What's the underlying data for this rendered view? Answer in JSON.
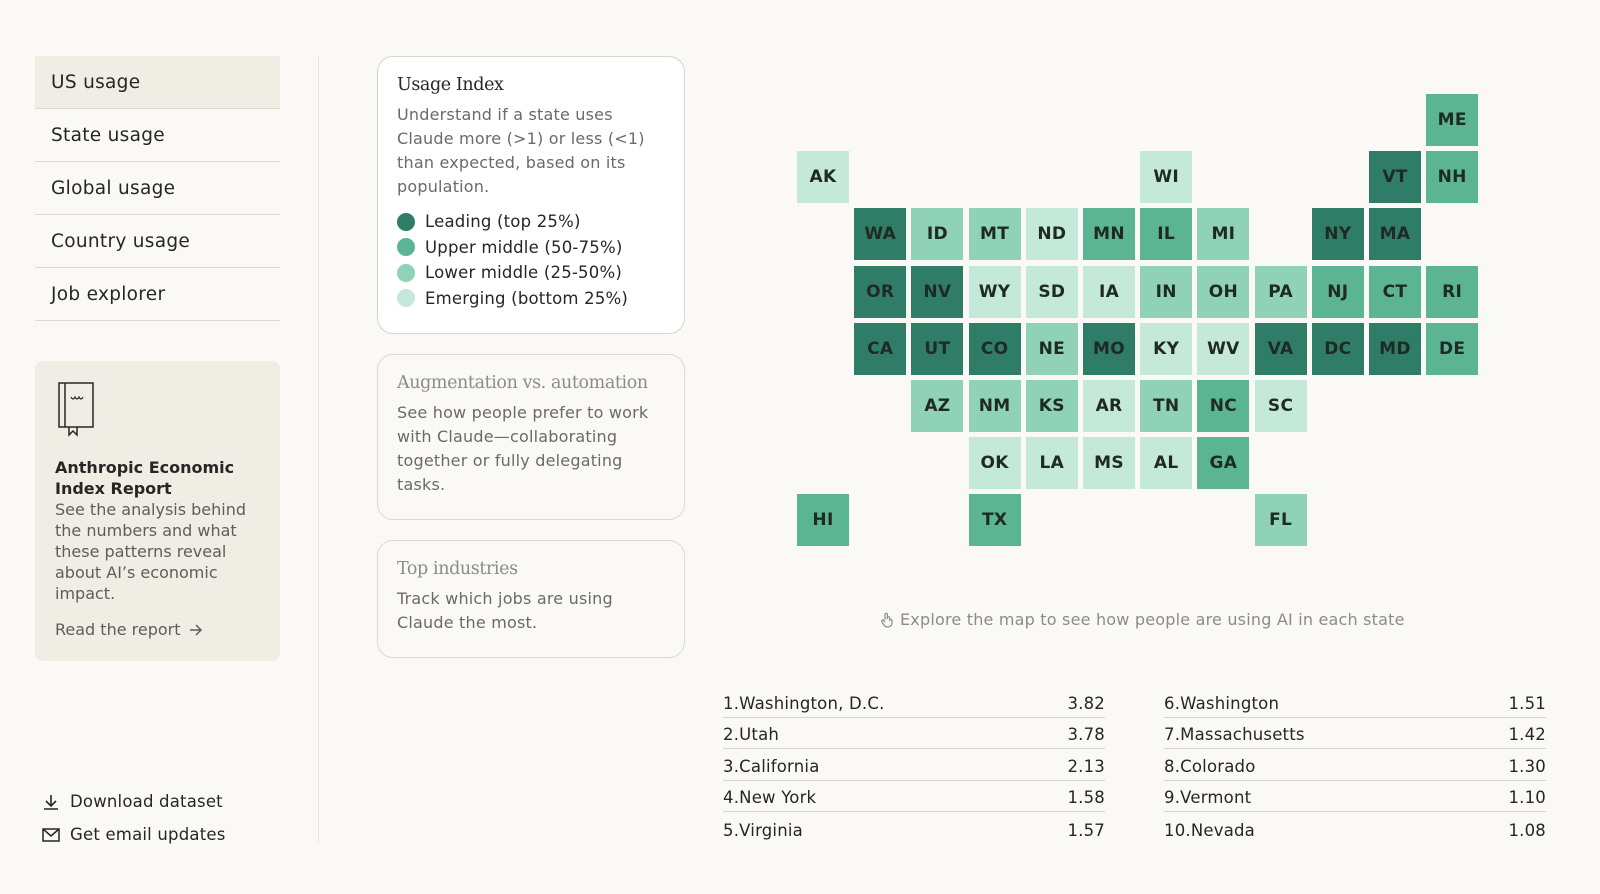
{
  "nav": {
    "items": [
      {
        "label": "US usage",
        "active": true
      },
      {
        "label": "State usage",
        "active": false
      },
      {
        "label": "Global usage",
        "active": false
      },
      {
        "label": "Country usage",
        "active": false
      },
      {
        "label": "Job explorer",
        "active": false
      }
    ]
  },
  "report": {
    "title": "Anthropic Economic Index Report",
    "description": "See the analysis behind the numbers and what these patterns reveal about AI’s economic impact.",
    "link_label": "Read the report",
    "icon": "book-icon"
  },
  "bottom_links": {
    "download": "Download dataset",
    "email": "Get email updates"
  },
  "cards": {
    "usage_index": {
      "title": "Usage Index",
      "description": "Understand if a state uses Claude more (>1) or less (<1) than expected, based on its population.",
      "legend": [
        {
          "label": "Leading (top 25%)",
          "color": "#2f7d66"
        },
        {
          "label": "Upper middle (50-75%)",
          "color": "#5bb595"
        },
        {
          "label": "Lower middle (25-50%)",
          "color": "#8fd2b8"
        },
        {
          "label": "Emerging (bottom 25%)",
          "color": "#c4e8d9"
        }
      ]
    },
    "augmentation": {
      "title": "Augmentation vs. automation",
      "description": "See how people prefer to work with Claude—collaborating together or fully delegating tasks."
    },
    "industries": {
      "title": "Top industries",
      "description": "Track which jobs are using Claude the most."
    }
  },
  "map": {
    "colors": {
      "t1": "#2f7d66",
      "t2": "#5bb595",
      "t3": "#8fd2b8",
      "t4": "#c4e8d9"
    },
    "states": [
      {
        "code": "ME",
        "col": 11,
        "row": 0,
        "tier": 2
      },
      {
        "code": "AK",
        "col": 0,
        "row": 1,
        "tier": 4
      },
      {
        "code": "WI",
        "col": 6,
        "row": 1,
        "tier": 4
      },
      {
        "code": "VT",
        "col": 10,
        "row": 1,
        "tier": 1
      },
      {
        "code": "NH",
        "col": 11,
        "row": 1,
        "tier": 2
      },
      {
        "code": "WA",
        "col": 1,
        "row": 2,
        "tier": 1
      },
      {
        "code": "ID",
        "col": 2,
        "row": 2,
        "tier": 3
      },
      {
        "code": "MT",
        "col": 3,
        "row": 2,
        "tier": 3
      },
      {
        "code": "ND",
        "col": 4,
        "row": 2,
        "tier": 4
      },
      {
        "code": "MN",
        "col": 5,
        "row": 2,
        "tier": 2
      },
      {
        "code": "IL",
        "col": 6,
        "row": 2,
        "tier": 2
      },
      {
        "code": "MI",
        "col": 7,
        "row": 2,
        "tier": 3
      },
      {
        "code": "NY",
        "col": 9,
        "row": 2,
        "tier": 1
      },
      {
        "code": "MA",
        "col": 10,
        "row": 2,
        "tier": 1
      },
      {
        "code": "OR",
        "col": 1,
        "row": 3,
        "tier": 1
      },
      {
        "code": "NV",
        "col": 2,
        "row": 3,
        "tier": 1
      },
      {
        "code": "WY",
        "col": 3,
        "row": 3,
        "tier": 4
      },
      {
        "code": "SD",
        "col": 4,
        "row": 3,
        "tier": 4
      },
      {
        "code": "IA",
        "col": 5,
        "row": 3,
        "tier": 4
      },
      {
        "code": "IN",
        "col": 6,
        "row": 3,
        "tier": 3
      },
      {
        "code": "OH",
        "col": 7,
        "row": 3,
        "tier": 3
      },
      {
        "code": "PA",
        "col": 8,
        "row": 3,
        "tier": 3
      },
      {
        "code": "NJ",
        "col": 9,
        "row": 3,
        "tier": 2
      },
      {
        "code": "CT",
        "col": 10,
        "row": 3,
        "tier": 2
      },
      {
        "code": "RI",
        "col": 11,
        "row": 3,
        "tier": 2
      },
      {
        "code": "CA",
        "col": 1,
        "row": 4,
        "tier": 1
      },
      {
        "code": "UT",
        "col": 2,
        "row": 4,
        "tier": 1
      },
      {
        "code": "CO",
        "col": 3,
        "row": 4,
        "tier": 1
      },
      {
        "code": "NE",
        "col": 4,
        "row": 4,
        "tier": 3
      },
      {
        "code": "MO",
        "col": 5,
        "row": 4,
        "tier": 1
      },
      {
        "code": "KY",
        "col": 6,
        "row": 4,
        "tier": 4
      },
      {
        "code": "WV",
        "col": 7,
        "row": 4,
        "tier": 4
      },
      {
        "code": "VA",
        "col": 8,
        "row": 4,
        "tier": 1
      },
      {
        "code": "DC",
        "col": 9,
        "row": 4,
        "tier": 1
      },
      {
        "code": "MD",
        "col": 10,
        "row": 4,
        "tier": 1
      },
      {
        "code": "DE",
        "col": 11,
        "row": 4,
        "tier": 2
      },
      {
        "code": "AZ",
        "col": 2,
        "row": 5,
        "tier": 3
      },
      {
        "code": "NM",
        "col": 3,
        "row": 5,
        "tier": 3
      },
      {
        "code": "KS",
        "col": 4,
        "row": 5,
        "tier": 3
      },
      {
        "code": "AR",
        "col": 5,
        "row": 5,
        "tier": 4
      },
      {
        "code": "TN",
        "col": 6,
        "row": 5,
        "tier": 3
      },
      {
        "code": "NC",
        "col": 7,
        "row": 5,
        "tier": 2
      },
      {
        "code": "SC",
        "col": 8,
        "row": 5,
        "tier": 4
      },
      {
        "code": "OK",
        "col": 3,
        "row": 6,
        "tier": 4
      },
      {
        "code": "LA",
        "col": 4,
        "row": 6,
        "tier": 4
      },
      {
        "code": "MS",
        "col": 5,
        "row": 6,
        "tier": 4
      },
      {
        "code": "AL",
        "col": 6,
        "row": 6,
        "tier": 4
      },
      {
        "code": "GA",
        "col": 7,
        "row": 6,
        "tier": 2
      },
      {
        "code": "HI",
        "col": 0,
        "row": 7,
        "tier": 2
      },
      {
        "code": "TX",
        "col": 3,
        "row": 7,
        "tier": 2
      },
      {
        "code": "FL",
        "col": 8,
        "row": 7,
        "tier": 3
      }
    ],
    "hint": "Explore the map to see how people are using AI in each state"
  },
  "rankings": [
    {
      "rank": "1.",
      "name": "Washington, D.C.",
      "value": "3.82"
    },
    {
      "rank": "2.",
      "name": "Utah",
      "value": "3.78"
    },
    {
      "rank": "3.",
      "name": "California",
      "value": "2.13"
    },
    {
      "rank": "4.",
      "name": "New York",
      "value": "1.58"
    },
    {
      "rank": "5.",
      "name": "Virginia",
      "value": "1.57"
    },
    {
      "rank": "6.",
      "name": "Washington",
      "value": "1.51"
    },
    {
      "rank": "7.",
      "name": "Massachusetts",
      "value": "1.42"
    },
    {
      "rank": "8.",
      "name": "Colorado",
      "value": "1.30"
    },
    {
      "rank": "9.",
      "name": "Vermont",
      "value": "1.10"
    },
    {
      "rank": "10.",
      "name": "Nevada",
      "value": "1.08"
    }
  ]
}
